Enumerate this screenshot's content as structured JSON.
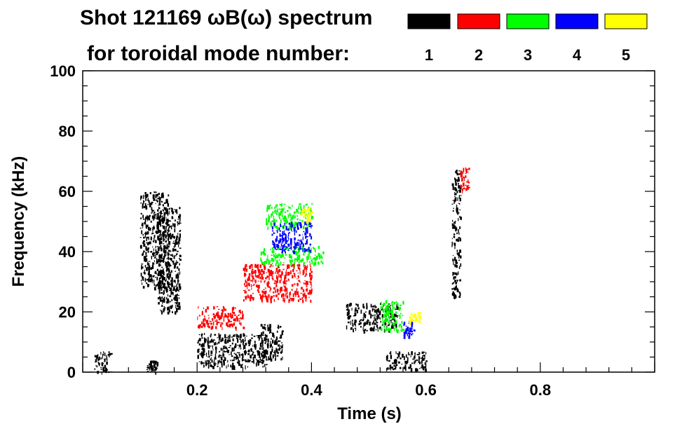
{
  "chart_data": {
    "type": "heatmap",
    "title_line1": "Shot 121169 ωB(ω) spectrum",
    "title_line2": "for toroidal mode number:",
    "xlabel": "Time (s)",
    "ylabel": "Frequency (kHz)",
    "xlim": [
      0.0,
      1.0
    ],
    "ylim": [
      0,
      100
    ],
    "x_ticks": [
      "0.2",
      "0.4",
      "0.6",
      "0.8"
    ],
    "x_tick_values": [
      0.2,
      0.4,
      0.6,
      0.8
    ],
    "y_ticks": [
      "0",
      "20",
      "40",
      "60",
      "80",
      "100"
    ],
    "y_tick_values": [
      0,
      20,
      40,
      60,
      80,
      100
    ],
    "legend_placement": "top-right",
    "legend": [
      {
        "label": "1",
        "color": "#000000"
      },
      {
        "label": "2",
        "color": "#ff0000"
      },
      {
        "label": "3",
        "color": "#00ff00"
      },
      {
        "label": "4",
        "color": "#0000ff"
      },
      {
        "label": "5",
        "color": "#ffff00"
      }
    ],
    "regions": [
      {
        "mode": 1,
        "t_start": 0.1,
        "t_end": 0.15,
        "f_low": 28,
        "f_high": 60
      },
      {
        "mode": 1,
        "t_start": 0.13,
        "t_end": 0.17,
        "f_low": 20,
        "f_high": 55
      },
      {
        "mode": 1,
        "t_start": 0.2,
        "t_end": 0.32,
        "f_low": 2,
        "f_high": 13
      },
      {
        "mode": 1,
        "t_start": 0.31,
        "t_end": 0.35,
        "f_low": 4,
        "f_high": 16
      },
      {
        "mode": 1,
        "t_start": 0.46,
        "t_end": 0.55,
        "f_low": 14,
        "f_high": 23
      },
      {
        "mode": 1,
        "t_start": 0.53,
        "t_end": 0.6,
        "f_low": 1,
        "f_high": 7
      },
      {
        "mode": 1,
        "t_start": 0.645,
        "t_end": 0.66,
        "f_low": 25,
        "f_high": 68
      },
      {
        "mode": 1,
        "t_start": 0.02,
        "t_end": 0.05,
        "f_low": 0,
        "f_high": 7
      },
      {
        "mode": 1,
        "t_start": 0.11,
        "t_end": 0.13,
        "f_low": 0,
        "f_high": 4
      },
      {
        "mode": 2,
        "t_start": 0.2,
        "t_end": 0.28,
        "f_low": 15,
        "f_high": 22
      },
      {
        "mode": 2,
        "t_start": 0.28,
        "t_end": 0.4,
        "f_low": 24,
        "f_high": 36
      },
      {
        "mode": 2,
        "t_start": 0.66,
        "t_end": 0.675,
        "f_low": 60,
        "f_high": 68
      },
      {
        "mode": 3,
        "t_start": 0.31,
        "t_end": 0.42,
        "f_low": 36,
        "f_high": 42
      },
      {
        "mode": 3,
        "t_start": 0.32,
        "t_end": 0.4,
        "f_low": 48,
        "f_high": 56
      },
      {
        "mode": 3,
        "t_start": 0.52,
        "t_end": 0.56,
        "f_low": 14,
        "f_high": 24
      },
      {
        "mode": 4,
        "t_start": 0.33,
        "t_end": 0.4,
        "f_low": 40,
        "f_high": 50
      },
      {
        "mode": 4,
        "t_start": 0.56,
        "t_end": 0.58,
        "f_low": 12,
        "f_high": 17
      },
      {
        "mode": 5,
        "t_start": 0.38,
        "t_end": 0.4,
        "f_low": 50,
        "f_high": 55
      },
      {
        "mode": 5,
        "t_start": 0.57,
        "t_end": 0.59,
        "f_low": 17,
        "f_high": 20
      }
    ]
  }
}
